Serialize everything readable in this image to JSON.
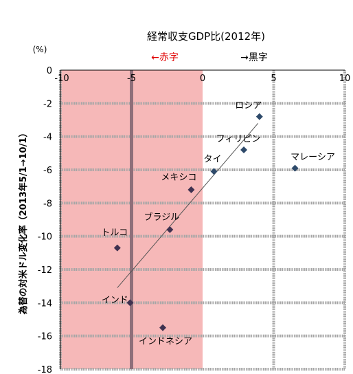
{
  "chart_data": {
    "type": "scatter",
    "title": "経常収支GDP比(2012年)",
    "unit_label": "(%)",
    "ylabel": "為替の対米ドル変化率（2013年5/1→10/1）",
    "deficit_label": "←赤字",
    "surplus_label": "→黒字",
    "xlim": [
      -10,
      10
    ],
    "ylim": [
      -18,
      0
    ],
    "x_ticks": [
      -10,
      -5,
      0,
      5,
      10
    ],
    "y_ticks": [
      0,
      -2,
      -4,
      -6,
      -8,
      -10,
      -12,
      -14,
      -16,
      -18
    ],
    "deficit_region": [
      -10,
      0
    ],
    "points": [
      {
        "label": "ロシア",
        "x": 4.0,
        "y": -2.8
      },
      {
        "label": "フィリピン",
        "x": 2.9,
        "y": -4.8
      },
      {
        "label": "タイ",
        "x": 0.8,
        "y": -6.1
      },
      {
        "label": "マレーシア",
        "x": 6.5,
        "y": -5.9
      },
      {
        "label": "メキシコ",
        "x": -0.8,
        "y": -7.2
      },
      {
        "label": "ブラジル",
        "x": -2.3,
        "y": -9.6
      },
      {
        "label": "トルコ",
        "x": -6.0,
        "y": -10.7
      },
      {
        "label": "インド",
        "x": -5.1,
        "y": -14.0
      },
      {
        "label": "インドネシア",
        "x": -2.8,
        "y": -15.5
      }
    ],
    "trendline": {
      "x": [
        -6.0,
        3.9
      ],
      "y": [
        -13.1,
        -3.2
      ]
    },
    "colors": {
      "marker": "#3f3150",
      "marker_teal": "#2e4a6a",
      "deficit_fill": "#f6b8b8",
      "deficit_label": "#e00000",
      "gridline": "#a6a6a6",
      "vertical_band": "#8f6f7a",
      "trendline": "#555555"
    }
  }
}
